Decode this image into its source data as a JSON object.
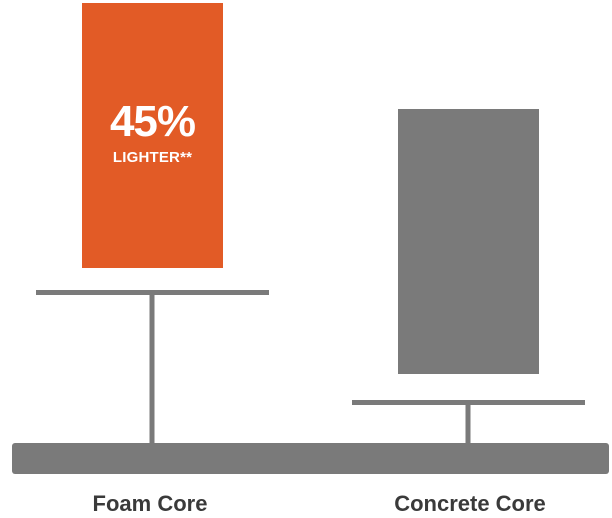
{
  "colors": {
    "accent": "#e25b26",
    "gray": "#7a7a7a",
    "label_text": "#3a3a3a",
    "block_text": "#ffffff"
  },
  "comparison": {
    "foam_core": {
      "label": "Foam Core",
      "headline": "45%",
      "subline": "LIGHTER**"
    },
    "concrete_core": {
      "label": "Concrete Core"
    }
  }
}
